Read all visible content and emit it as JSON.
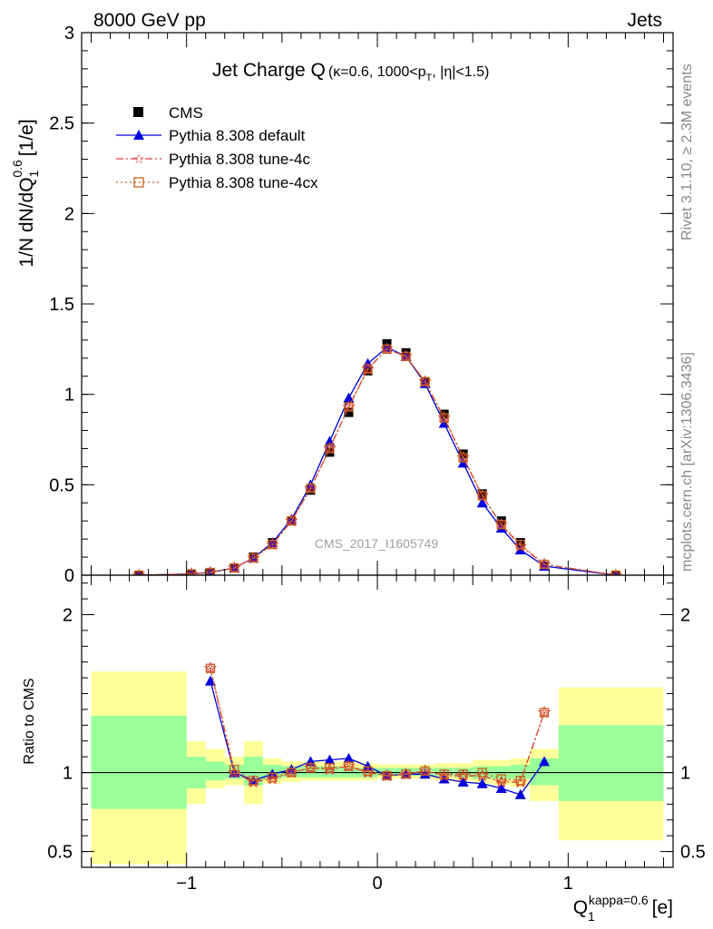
{
  "header": {
    "left": "8000 GeV pp",
    "right": "Jets"
  },
  "side_text": {
    "rivet": "Rivet 3.1.10, ≥ 2.3M events",
    "mcplots": "mcplots.cern.ch [arXiv:1306.3436]"
  },
  "colors": {
    "cms": "#000000",
    "default": "#0000dd",
    "tune4c": "#e03a3a",
    "tune4cx": "#c8601e",
    "band_yellow": "#ffff99",
    "band_green": "#99ff99"
  },
  "chart_data": [
    {
      "type": "line",
      "panel": "main",
      "title_main": "Jet Charge Q",
      "title_sub": "(κ=0.6, 1000<p",
      "title_sub_idx": "T",
      "title_sub_tail": ", |η|<1.5)",
      "ylabel": "1/N dN/dQ",
      "ylabel_sub": "1",
      "ylabel_sup": "0.6",
      "ylabel_unit": "[1/e]",
      "watermark": "CMS_2017_I1605749",
      "xlim": [
        -1.55,
        1.55
      ],
      "ylim": [
        0,
        3
      ],
      "y_ticks": [
        0,
        0.5,
        1,
        1.5,
        2,
        2.5,
        3
      ],
      "y_tick_labels": [
        "0",
        "0.5",
        "1",
        "1.5",
        "2",
        "2.5",
        "3"
      ],
      "x": [
        -1.25,
        -0.975,
        -0.875,
        -0.75,
        -0.65,
        -0.55,
        -0.45,
        -0.35,
        -0.25,
        -0.15,
        -0.05,
        0.05,
        0.15,
        0.25,
        0.35,
        0.45,
        0.55,
        0.65,
        0.75,
        0.875,
        1.25
      ],
      "legend_position": "top-left",
      "series": [
        {
          "name": "CMS",
          "key": "cms",
          "marker": "square",
          "values": [
            0.0,
            0.005,
            0.009,
            0.04,
            0.1,
            0.18,
            0.3,
            0.47,
            0.68,
            0.9,
            1.13,
            1.28,
            1.23,
            1.07,
            0.89,
            0.67,
            0.45,
            0.3,
            0.18,
            0.05,
            0.0
          ]
        },
        {
          "name": "Pythia 8.308 default",
          "key": "default",
          "marker": "triangle",
          "values": [
            0.0,
            0.007,
            0.015,
            0.04,
            0.095,
            0.18,
            0.31,
            0.5,
            0.74,
            0.98,
            1.17,
            1.26,
            1.21,
            1.06,
            0.84,
            0.62,
            0.4,
            0.26,
            0.14,
            0.05,
            0.0
          ]
        },
        {
          "name": "Pythia 8.308 tune-4c",
          "key": "tune4c",
          "marker": "star",
          "values": [
            0.0,
            0.007,
            0.015,
            0.04,
            0.094,
            0.17,
            0.3,
            0.48,
            0.7,
            0.93,
            1.14,
            1.25,
            1.21,
            1.07,
            0.87,
            0.65,
            0.44,
            0.28,
            0.16,
            0.06,
            0.0
          ]
        },
        {
          "name": "Pythia 8.308 tune-4cx",
          "key": "tune4cx",
          "marker": "open-square",
          "values": [
            0.0,
            0.007,
            0.015,
            0.04,
            0.095,
            0.17,
            0.3,
            0.48,
            0.7,
            0.93,
            1.14,
            1.25,
            1.21,
            1.07,
            0.87,
            0.65,
            0.44,
            0.28,
            0.17,
            0.06,
            0.0
          ]
        }
      ]
    },
    {
      "type": "line",
      "panel": "ratio",
      "ylabel": "Ratio to CMS",
      "xlabel": "Q",
      "xlabel_sub": "1",
      "xlabel_sup": "kappa=0.6",
      "xlabel_unit": "[e]",
      "xlim": [
        -1.55,
        1.55
      ],
      "ylim": [
        0.4,
        2.25
      ],
      "x_ticks": [
        -1,
        0,
        1
      ],
      "x_tick_labels": [
        "−1",
        "0",
        "1"
      ],
      "y_ticks": [
        0.5,
        1,
        2
      ],
      "y_tick_labels": [
        "0.5",
        "1",
        "2"
      ],
      "bands": [
        {
          "x0": -1.5,
          "x1": -1.0,
          "yellow": [
            0.42,
            1.64
          ],
          "green": [
            0.77,
            1.36
          ]
        },
        {
          "x0": -1.0,
          "x1": -0.9,
          "yellow": [
            0.8,
            1.2
          ],
          "green": [
            0.9,
            1.1
          ]
        },
        {
          "x0": -0.9,
          "x1": -0.8,
          "yellow": [
            0.9,
            1.15
          ],
          "green": [
            0.95,
            1.07
          ]
        },
        {
          "x0": -0.8,
          "x1": -0.7,
          "yellow": [
            0.92,
            1.1
          ],
          "green": [
            0.96,
            1.05
          ]
        },
        {
          "x0": -0.7,
          "x1": -0.6,
          "yellow": [
            0.8,
            1.2
          ],
          "green": [
            0.92,
            1.1
          ]
        },
        {
          "x0": -0.6,
          "x1": -0.5,
          "yellow": [
            0.93,
            1.09
          ],
          "green": [
            0.96,
            1.05
          ]
        },
        {
          "x0": -0.5,
          "x1": -0.4,
          "yellow": [
            0.94,
            1.07
          ],
          "green": [
            0.97,
            1.04
          ]
        },
        {
          "x0": -0.4,
          "x1": -0.3,
          "yellow": [
            0.95,
            1.07
          ],
          "green": [
            0.97,
            1.04
          ]
        },
        {
          "x0": -0.3,
          "x1": -0.2,
          "yellow": [
            0.95,
            1.07
          ],
          "green": [
            0.97,
            1.04
          ]
        },
        {
          "x0": -0.2,
          "x1": -0.1,
          "yellow": [
            0.95,
            1.07
          ],
          "green": [
            0.97,
            1.03
          ]
        },
        {
          "x0": -0.1,
          "x1": 0.0,
          "yellow": [
            0.95,
            1.06
          ],
          "green": [
            0.97,
            1.03
          ]
        },
        {
          "x0": 0.0,
          "x1": 0.1,
          "yellow": [
            0.96,
            1.05
          ],
          "green": [
            0.98,
            1.03
          ]
        },
        {
          "x0": 0.1,
          "x1": 0.2,
          "yellow": [
            0.96,
            1.05
          ],
          "green": [
            0.98,
            1.03
          ]
        },
        {
          "x0": 0.2,
          "x1": 0.3,
          "yellow": [
            0.96,
            1.05
          ],
          "green": [
            0.98,
            1.03
          ]
        },
        {
          "x0": 0.3,
          "x1": 0.4,
          "yellow": [
            0.95,
            1.06
          ],
          "green": [
            0.98,
            1.03
          ]
        },
        {
          "x0": 0.4,
          "x1": 0.5,
          "yellow": [
            0.95,
            1.06
          ],
          "green": [
            0.97,
            1.03
          ]
        },
        {
          "x0": 0.5,
          "x1": 0.6,
          "yellow": [
            0.93,
            1.08
          ],
          "green": [
            0.96,
            1.04
          ]
        },
        {
          "x0": 0.6,
          "x1": 0.7,
          "yellow": [
            0.92,
            1.08
          ],
          "green": [
            0.96,
            1.04
          ]
        },
        {
          "x0": 0.7,
          "x1": 0.8,
          "yellow": [
            0.91,
            1.09
          ],
          "green": [
            0.96,
            1.05
          ]
        },
        {
          "x0": 0.8,
          "x1": 0.95,
          "yellow": [
            0.82,
            1.15
          ],
          "green": [
            0.92,
            1.09
          ]
        },
        {
          "x0": 0.95,
          "x1": 1.5,
          "yellow": [
            0.57,
            1.54
          ],
          "green": [
            0.82,
            1.3
          ]
        }
      ],
      "x": [
        -0.875,
        -0.75,
        -0.65,
        -0.55,
        -0.45,
        -0.35,
        -0.25,
        -0.15,
        -0.05,
        0.05,
        0.15,
        0.25,
        0.35,
        0.45,
        0.55,
        0.65,
        0.75,
        0.875
      ],
      "series": [
        {
          "name": "Pythia 8.308 default",
          "key": "default",
          "marker": "triangle",
          "values": [
            1.58,
            1.0,
            0.95,
            0.99,
            1.02,
            1.07,
            1.08,
            1.09,
            1.04,
            0.98,
            0.99,
            0.99,
            0.96,
            0.94,
            0.93,
            0.9,
            0.86,
            1.07
          ]
        },
        {
          "name": "Pythia 8.308 tune-4c",
          "key": "tune4c",
          "marker": "star",
          "values": [
            1.66,
            1.0,
            0.94,
            0.96,
            1.0,
            1.03,
            1.02,
            1.04,
            1.0,
            0.98,
            0.99,
            1.01,
            0.98,
            0.98,
            0.98,
            0.94,
            0.94,
            1.38
          ]
        },
        {
          "name": "Pythia 8.308 tune-4cx",
          "key": "tune4cx",
          "marker": "open-square",
          "values": [
            1.66,
            1.02,
            0.95,
            0.97,
            1.0,
            1.03,
            1.03,
            1.04,
            1.01,
            0.98,
            0.99,
            1.01,
            0.99,
            0.99,
            1.0,
            0.96,
            0.95,
            1.38
          ]
        }
      ]
    }
  ]
}
